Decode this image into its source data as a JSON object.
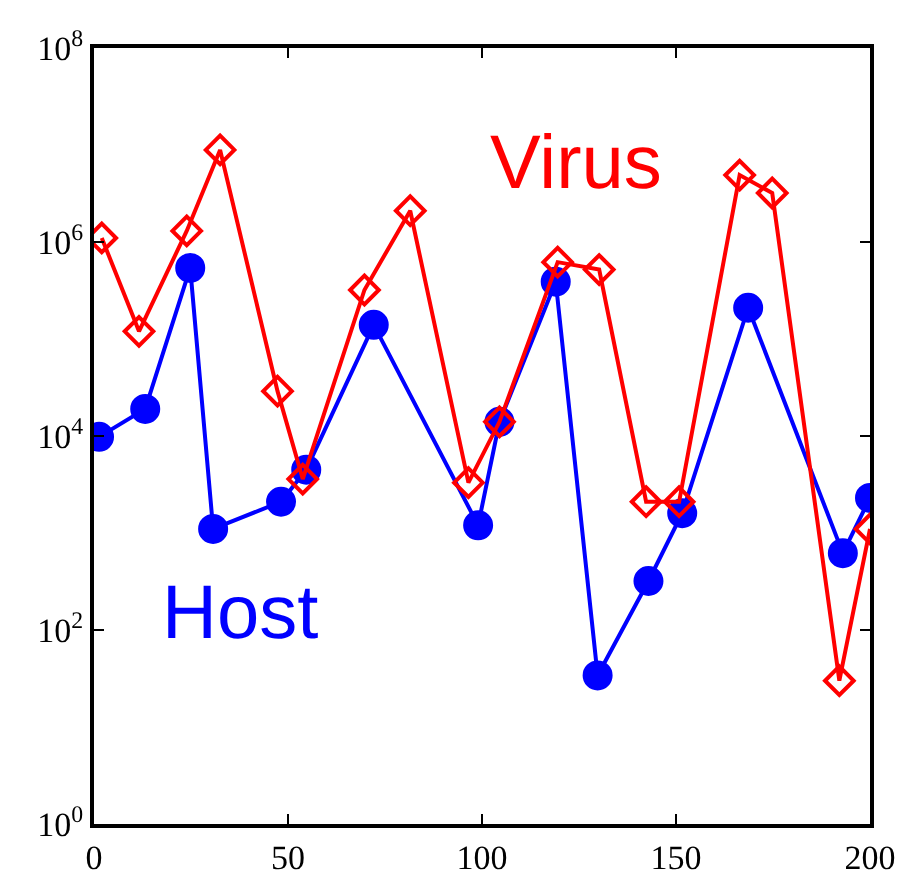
{
  "chart_data": {
    "type": "line",
    "log": "y",
    "grid": false,
    "legend": false,
    "xlim": [
      0,
      200
    ],
    "xticks": [
      0,
      50,
      100,
      150,
      200
    ],
    "ylim": [
      1,
      100000000
    ],
    "yticks": [
      {
        "value": 1,
        "label": "10$^{0}$"
      },
      {
        "value": 100,
        "label": "10$^{2}$"
      },
      {
        "value": 10000,
        "label": "10$^{4}$"
      },
      {
        "value": 1000000,
        "label": "10$^{6}$"
      },
      {
        "value": 100000000,
        "label": "10$^{8}$"
      }
    ],
    "series": [
      {
        "name": "Virus",
        "color": "#ff0000",
        "marker": "diamond",
        "x": [
          2,
          11.6,
          23.9,
          32.5,
          47.3,
          53.8,
          69.7,
          81.5,
          96.5,
          104.5,
          119.5,
          130.2,
          142.3,
          150.8,
          166.4,
          174.8,
          192.1,
          200
        ],
        "values": [
          1100000,
          120000,
          1300000,
          8900000,
          29000,
          3600,
          320000,
          2100000,
          3300,
          14000,
          620000,
          520000,
          2100,
          2100,
          4900000,
          3200000,
          30,
          1100
        ]
      },
      {
        "name": "Host",
        "color": "#0000ff",
        "marker": "circle",
        "x": [
          1.3,
          13.2,
          24.8,
          30.7,
          48.2,
          54.7,
          72.1,
          99,
          104.5,
          119,
          129.8,
          142.9,
          151.6,
          168.6,
          193,
          200
        ],
        "values": [
          9800,
          19000,
          540000,
          1100,
          2100,
          4500,
          140000,
          1200,
          14000,
          390000,
          34,
          320,
          1600,
          210000,
          620,
          2300
        ]
      }
    ]
  }
}
